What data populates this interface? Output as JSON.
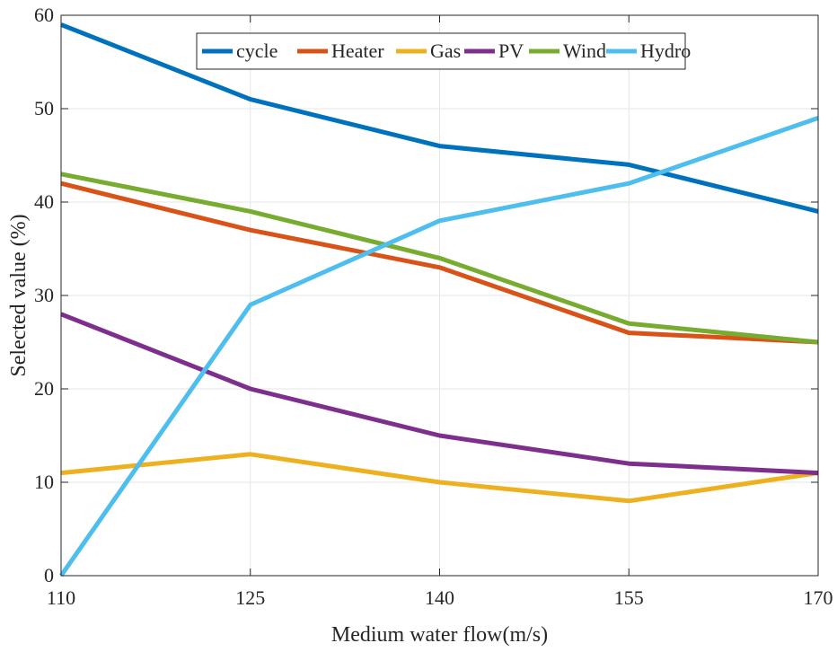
{
  "chart_data": {
    "type": "line",
    "xlabel": "Medium water flow(m/s)",
    "ylabel": "Selected value (%)",
    "x": [
      110,
      125,
      140,
      155,
      170
    ],
    "xlim": [
      110,
      170
    ],
    "ylim": [
      0,
      60
    ],
    "xticks": [
      110,
      125,
      140,
      155,
      170
    ],
    "yticks": [
      0,
      10,
      20,
      30,
      40,
      50,
      60
    ],
    "grid": true,
    "legend_position": "top",
    "legend_orientation": "horizontal",
    "series": [
      {
        "name": "cycle",
        "color": "#0072BD",
        "values": [
          59,
          51,
          46,
          44,
          39
        ]
      },
      {
        "name": "Heater",
        "color": "#D95319",
        "values": [
          42,
          37,
          33,
          26,
          25
        ]
      },
      {
        "name": "Gas",
        "color": "#EDB120",
        "values": [
          11,
          13,
          10,
          8,
          11
        ]
      },
      {
        "name": "PV",
        "color": "#7E2F8E",
        "values": [
          28,
          20,
          15,
          12,
          11
        ]
      },
      {
        "name": "Wind",
        "color": "#77AC30",
        "values": [
          43,
          39,
          34,
          27,
          25
        ]
      },
      {
        "name": "Hydro",
        "color": "#4DBEEE",
        "values": [
          0,
          29,
          38,
          42,
          49
        ]
      }
    ]
  }
}
